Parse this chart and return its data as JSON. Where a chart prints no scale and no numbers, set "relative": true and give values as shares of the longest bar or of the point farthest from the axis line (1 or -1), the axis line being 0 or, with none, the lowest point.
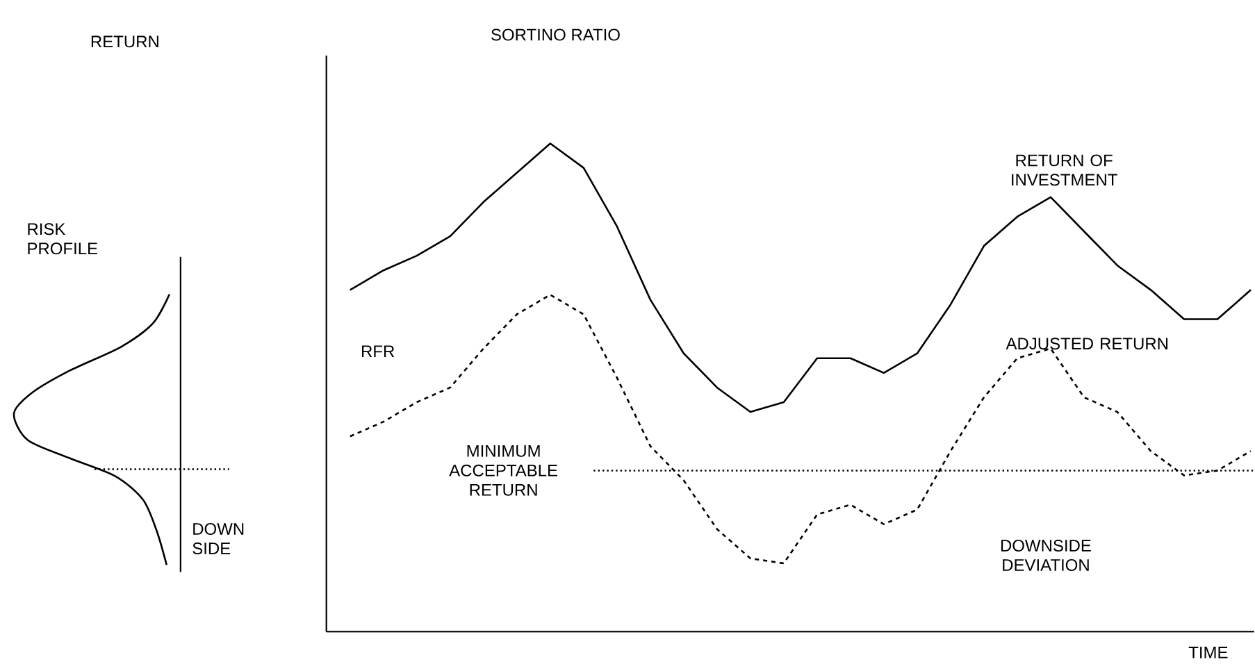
{
  "chart_data": {
    "type": "line",
    "title": "SORTINO RATIO",
    "xlabel": "TIME",
    "relative": true,
    "categories": [
      null,
      null,
      null,
      null,
      null,
      null,
      null,
      null,
      null,
      null,
      null,
      null,
      null,
      null,
      null,
      null,
      null,
      null,
      null,
      null,
      null,
      null,
      null,
      null,
      null,
      null,
      null,
      null
    ],
    "series": [
      {
        "name": "RETURN OF INVESTMENT",
        "color": "#000000",
        "line_style": "solid",
        "values": [
          0.7,
          0.74,
          0.77,
          0.81,
          0.88,
          0.94,
          1.0,
          0.95,
          0.83,
          0.68,
          0.57,
          0.5,
          0.45,
          0.47,
          0.56,
          0.56,
          0.53,
          0.57,
          0.67,
          0.79,
          0.85,
          0.89,
          0.82,
          0.75,
          0.7,
          0.64,
          0.64,
          0.7
        ]
      },
      {
        "name": "ADJUSTED RETURN",
        "color": "#000000",
        "line_style": "dashed",
        "values": [
          0.4,
          0.43,
          0.47,
          0.5,
          0.58,
          0.65,
          0.69,
          0.65,
          0.52,
          0.38,
          0.31,
          0.21,
          0.15,
          0.14,
          0.24,
          0.26,
          0.22,
          0.25,
          0.37,
          0.48,
          0.56,
          0.58,
          0.48,
          0.45,
          0.37,
          0.32,
          0.33,
          0.37
        ]
      }
    ],
    "ref_lines": [
      {
        "axis": "y",
        "value": 0.33,
        "label": "MINIMUM ACCEPTABLE RETURN",
        "line_style": "dotted"
      }
    ],
    "annotations": [
      "RFR",
      "DOWNSIDE DEVIATION",
      "RISK PROFILE",
      "DOWN SIDE",
      "RETURN"
    ]
  }
}
